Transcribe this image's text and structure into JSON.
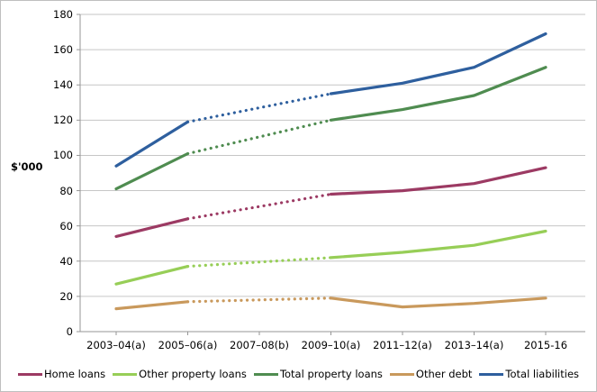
{
  "chart_data": {
    "type": "line",
    "title": "",
    "ylabel": "$'000",
    "xlabel": "",
    "ylim": [
      0,
      180
    ],
    "ytick_step": 20,
    "yticks": [
      0,
      20,
      40,
      60,
      80,
      100,
      120,
      140,
      160,
      180
    ],
    "grid": "horizontal",
    "legend_position": "bottom",
    "categories": [
      "2003–04(a)",
      "2005–06(a)",
      "2007–08(b)",
      "2009–10(a)",
      "2011–12(a)",
      "2013–14(a)",
      "2015-16"
    ],
    "dotted_between_indices": [
      1,
      3
    ],
    "series": [
      {
        "name": "Home loans",
        "color": "#9C3A63",
        "values": [
          54,
          64,
          71,
          78,
          80,
          84,
          93
        ]
      },
      {
        "name": "Other property loans",
        "color": "#97CE57",
        "values": [
          27,
          37,
          39.5,
          42,
          45,
          49,
          57
        ]
      },
      {
        "name": "Total property loans",
        "color": "#4F8C50",
        "values": [
          81,
          101,
          110.5,
          120,
          126,
          134,
          150
        ]
      },
      {
        "name": "Other debt",
        "color": "#C9995C",
        "values": [
          13,
          17,
          18,
          19,
          14,
          16,
          19
        ]
      },
      {
        "name": "Total liabilities",
        "color": "#2E5F9E",
        "values": [
          94,
          119,
          127,
          135,
          141,
          150,
          169
        ]
      }
    ]
  },
  "colors": {
    "background": "#FFFFFF",
    "border": "#BFBFBF",
    "gridline": "#C6C6C6",
    "axis": "#969696",
    "text": "#000000"
  }
}
